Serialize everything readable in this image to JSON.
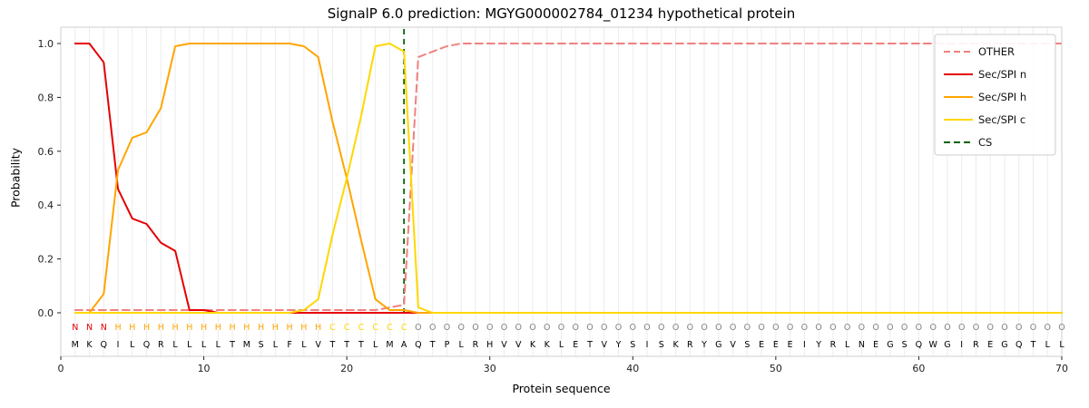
{
  "chart_data": {
    "type": "line",
    "title": "SignalP 6.0 prediction: MGYG000002784_01234 hypothetical protein",
    "xlabel": "Protein sequence",
    "ylabel": "Probability",
    "xlim": [
      0,
      70
    ],
    "ylim": [
      0,
      1.0
    ],
    "xticks": [
      0,
      10,
      20,
      30,
      40,
      50,
      60,
      70
    ],
    "yticks": [
      0.0,
      0.2,
      0.4,
      0.6,
      0.8,
      1.0
    ],
    "grid": "vertical-only",
    "legend_position": "upper right",
    "x_note": "x = residue position 1..70",
    "series": [
      {
        "name": "OTHER",
        "color": "#f08080",
        "style": "dashed",
        "values": [
          0.01,
          0.01,
          0.01,
          0.01,
          0.01,
          0.01,
          0.01,
          0.01,
          0.01,
          0.01,
          0.01,
          0.01,
          0.01,
          0.01,
          0.01,
          0.01,
          0.01,
          0.01,
          0.01,
          0.01,
          0.01,
          0.01,
          0.02,
          0.03,
          0.95,
          0.97,
          0.99,
          1.0,
          1.0,
          1.0,
          1.0,
          1.0,
          1.0,
          1.0,
          1.0,
          1.0,
          1.0,
          1.0,
          1.0,
          1.0,
          1.0,
          1.0,
          1.0,
          1.0,
          1.0,
          1.0,
          1.0,
          1.0,
          1.0,
          1.0,
          1.0,
          1.0,
          1.0,
          1.0,
          1.0,
          1.0,
          1.0,
          1.0,
          1.0,
          1.0,
          1.0,
          1.0,
          1.0,
          1.0,
          1.0,
          1.0,
          1.0,
          1.0,
          1.0,
          1.0
        ]
      },
      {
        "name": "Sec/SPI n",
        "color": "#e50000",
        "style": "solid",
        "values": [
          1.0,
          1.0,
          0.93,
          0.46,
          0.35,
          0.33,
          0.26,
          0.23,
          0.01,
          0.01,
          0.0,
          0.0,
          0.0,
          0.0,
          0.0,
          0.0,
          0.0,
          0.0,
          0.0,
          0.0,
          0.0,
          0.0,
          0.0,
          0.0,
          0.0,
          0.0,
          0.0,
          0.0,
          0.0,
          0.0,
          0.0,
          0.0,
          0.0,
          0.0,
          0.0,
          0.0,
          0.0,
          0.0,
          0.0,
          0.0,
          0.0,
          0.0,
          0.0,
          0.0,
          0.0,
          0.0,
          0.0,
          0.0,
          0.0,
          0.0,
          0.0,
          0.0,
          0.0,
          0.0,
          0.0,
          0.0,
          0.0,
          0.0,
          0.0,
          0.0,
          0.0,
          0.0,
          0.0,
          0.0,
          0.0,
          0.0,
          0.0,
          0.0,
          0.0,
          0.0
        ]
      },
      {
        "name": "Sec/SPI h",
        "color": "#ffa500",
        "style": "solid",
        "values": [
          0.0,
          0.0,
          0.07,
          0.53,
          0.65,
          0.67,
          0.76,
          0.99,
          1.0,
          1.0,
          1.0,
          1.0,
          1.0,
          1.0,
          1.0,
          1.0,
          0.99,
          0.95,
          0.71,
          0.5,
          0.27,
          0.05,
          0.01,
          0.01,
          0.0,
          0.0,
          0.0,
          0.0,
          0.0,
          0.0,
          0.0,
          0.0,
          0.0,
          0.0,
          0.0,
          0.0,
          0.0,
          0.0,
          0.0,
          0.0,
          0.0,
          0.0,
          0.0,
          0.0,
          0.0,
          0.0,
          0.0,
          0.0,
          0.0,
          0.0,
          0.0,
          0.0,
          0.0,
          0.0,
          0.0,
          0.0,
          0.0,
          0.0,
          0.0,
          0.0,
          0.0,
          0.0,
          0.0,
          0.0,
          0.0,
          0.0,
          0.0,
          0.0,
          0.0,
          0.0
        ]
      },
      {
        "name": "Sec/SPI c",
        "color": "#ffd700",
        "style": "solid",
        "values": [
          0.0,
          0.0,
          0.0,
          0.0,
          0.0,
          0.0,
          0.0,
          0.0,
          0.0,
          0.0,
          0.0,
          0.0,
          0.0,
          0.0,
          0.0,
          0.0,
          0.01,
          0.05,
          0.29,
          0.5,
          0.73,
          0.99,
          1.0,
          0.97,
          0.02,
          0.0,
          0.0,
          0.0,
          0.0,
          0.0,
          0.0,
          0.0,
          0.0,
          0.0,
          0.0,
          0.0,
          0.0,
          0.0,
          0.0,
          0.0,
          0.0,
          0.0,
          0.0,
          0.0,
          0.0,
          0.0,
          0.0,
          0.0,
          0.0,
          0.0,
          0.0,
          0.0,
          0.0,
          0.0,
          0.0,
          0.0,
          0.0,
          0.0,
          0.0,
          0.0,
          0.0,
          0.0,
          0.0,
          0.0,
          0.0,
          0.0,
          0.0,
          0.0,
          0.0,
          0.0
        ]
      }
    ],
    "cs_marker": {
      "name": "CS",
      "color": "#006400",
      "style": "dashed",
      "x": 24
    },
    "sequence": "MKQILQRLLLLTMSLFLVTTTLMAQTPLRHVVKKLETVYSISKRYGVSEEEIYRLNEGSQWGIREGQTLL",
    "region_labels": "NNNHHHHHHHHHHHHHHHCCCCCCOOOOOOOOOOOOOOOOOOOOOOOOOOOOOOOOOOOOOOOOOOOOOO",
    "region_colors": {
      "N": "#e50000",
      "H": "#ffa500",
      "C": "#ffd700",
      "O": "#808080"
    },
    "sequence_color": "#000000",
    "frame_color": "#cfcfcf",
    "grid_color": "#ececec",
    "tick_color": "#222222"
  }
}
